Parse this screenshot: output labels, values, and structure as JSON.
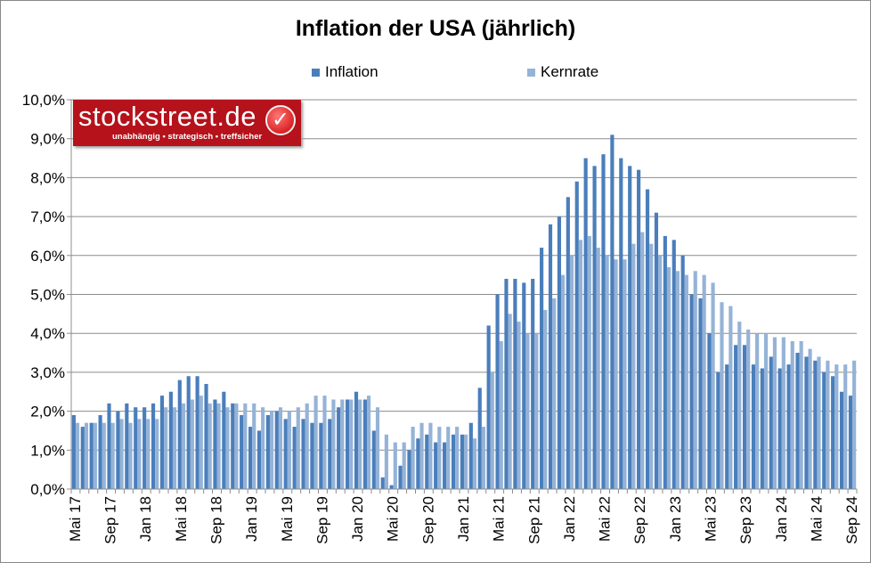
{
  "chart_data": {
    "type": "bar",
    "title": "Inflation der USA (jährlich)",
    "xlabel": "",
    "ylabel": "",
    "ylim": [
      0,
      10
    ],
    "yticks": [
      "0,0%",
      "1,0%",
      "2,0%",
      "3,0%",
      "4,0%",
      "5,0%",
      "6,0%",
      "7,0%",
      "8,0%",
      "9,0%",
      "10,0%"
    ],
    "grid": true,
    "legend_position": "top",
    "x_tick_labels": [
      "Mai 17",
      "Sep 17",
      "Jan 18",
      "Mai 18",
      "Sep 18",
      "Jan 19",
      "Mai 19",
      "Sep 19",
      "Jan 20",
      "Mai 20",
      "Sep 20",
      "Jan 21",
      "Mai 21",
      "Sep 21",
      "Jan 22",
      "Mai 22",
      "Sep 22",
      "Jan 23",
      "Mai 23",
      "Sep 23",
      "Jan 24",
      "Mai 24",
      "Sep 24"
    ],
    "categories_start": "Mai 17",
    "categories_end": "Sep 24",
    "frequency": "monthly",
    "series": [
      {
        "name": "Inflation",
        "color": "#4a7ebb",
        "values": [
          1.9,
          1.6,
          1.7,
          1.9,
          2.2,
          2.0,
          2.2,
          2.1,
          2.1,
          2.2,
          2.4,
          2.5,
          2.8,
          2.9,
          2.9,
          2.7,
          2.3,
          2.5,
          2.2,
          1.9,
          1.6,
          1.5,
          1.9,
          2.0,
          1.8,
          1.6,
          1.8,
          1.7,
          1.7,
          1.8,
          2.1,
          2.3,
          2.5,
          2.3,
          1.5,
          0.3,
          0.1,
          0.6,
          1.0,
          1.3,
          1.4,
          1.2,
          1.2,
          1.4,
          1.4,
          1.7,
          2.6,
          4.2,
          5.0,
          5.4,
          5.4,
          5.3,
          5.4,
          6.2,
          6.8,
          7.0,
          7.5,
          7.9,
          8.5,
          8.3,
          8.6,
          9.1,
          8.5,
          8.3,
          8.2,
          7.7,
          7.1,
          6.5,
          6.4,
          6.0,
          5.0,
          4.9,
          4.0,
          3.0,
          3.2,
          3.7,
          3.7,
          3.2,
          3.1,
          3.4,
          3.1,
          3.2,
          3.5,
          3.4,
          3.3,
          3.0,
          2.9,
          2.5,
          2.4
        ]
      },
      {
        "name": "Kernrate",
        "color": "#95b3d7",
        "values": [
          1.7,
          1.7,
          1.7,
          1.7,
          1.7,
          1.8,
          1.7,
          1.8,
          1.8,
          1.8,
          2.1,
          2.1,
          2.2,
          2.3,
          2.4,
          2.2,
          2.2,
          2.1,
          2.2,
          2.2,
          2.2,
          2.1,
          2.0,
          2.1,
          2.0,
          2.1,
          2.2,
          2.4,
          2.4,
          2.3,
          2.3,
          2.3,
          2.3,
          2.4,
          2.1,
          1.4,
          1.2,
          1.2,
          1.6,
          1.7,
          1.7,
          1.6,
          1.6,
          1.6,
          1.4,
          1.3,
          1.6,
          3.0,
          3.8,
          4.5,
          4.3,
          4.0,
          4.0,
          4.6,
          4.9,
          5.5,
          6.0,
          6.4,
          6.5,
          6.2,
          6.0,
          5.9,
          5.9,
          6.3,
          6.6,
          6.3,
          6.0,
          5.7,
          5.6,
          5.5,
          5.6,
          5.5,
          5.3,
          4.8,
          4.7,
          4.3,
          4.1,
          4.0,
          4.0,
          3.9,
          3.9,
          3.8,
          3.8,
          3.6,
          3.4,
          3.3,
          3.2,
          3.2,
          3.3
        ]
      }
    ]
  },
  "logo": {
    "brand": "stockstreet.de",
    "tagline": "unabhängig • strategisch • treffsicher"
  }
}
